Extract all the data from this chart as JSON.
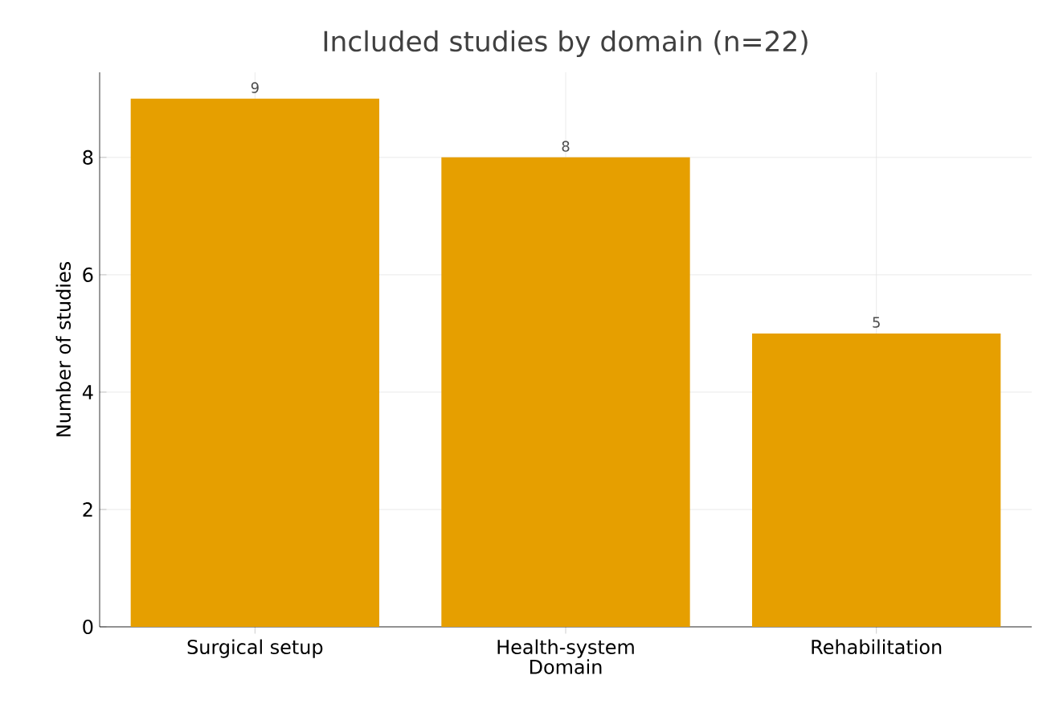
{
  "chart_data": {
    "type": "bar",
    "title": "Included studies by domain (n=22)",
    "xlabel": "Domain",
    "ylabel": "Number of studies",
    "categories": [
      "Surgical setup",
      "Health-system",
      "Rehabilitation"
    ],
    "values": [
      9,
      8,
      5
    ],
    "color": "#e69f00",
    "ylim": [
      0,
      9.45
    ],
    "yticks": [
      0,
      2,
      4,
      6,
      8
    ],
    "grid": true,
    "data_labels": true
  }
}
